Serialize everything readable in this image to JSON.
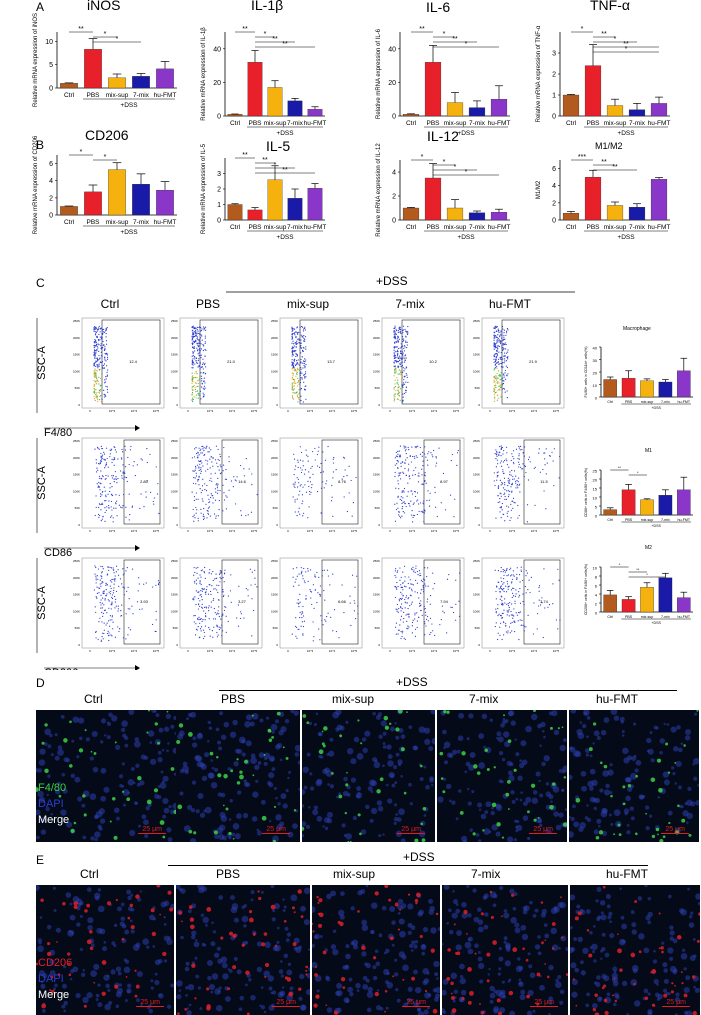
{
  "colors": {
    "ctrl": "#b35a1f",
    "pbs": "#e8202a",
    "mix": "#f5b20e",
    "seven": "#1a1aa8",
    "hu": "#8a36c9"
  },
  "panel_letters": [
    "A",
    "B",
    "C",
    "D",
    "E"
  ],
  "dss_label": "+DSS",
  "groups": [
    "Ctrl",
    "PBS",
    "mix-sup",
    "7-mix",
    "hu-FMT"
  ],
  "chart_data": [
    {
      "type": "bar",
      "id": "inos",
      "title": "iNOS",
      "ylabel": "Relative mRNA expression of iNOS",
      "ylim": [
        0,
        12
      ],
      "ticks": [
        "0",
        "5",
        "10"
      ],
      "tick_values": [
        0,
        5,
        10
      ],
      "categories": [
        "Ctrl",
        "PBS",
        "mix-sup",
        "7-mix",
        "hu-FMT"
      ],
      "values": [
        1,
        8.3,
        2.2,
        2.5,
        4.1
      ],
      "errors": [
        0.1,
        2.3,
        0.8,
        0.6,
        1.6
      ],
      "sig": [
        "**",
        "*",
        "*"
      ]
    },
    {
      "type": "bar",
      "id": "il1b",
      "title": "IL-1β",
      "ylabel": "Relative mRNA expression of IL-1β",
      "ylim": [
        0,
        50
      ],
      "ticks": [
        "0",
        "20",
        "40"
      ],
      "tick_values": [
        0,
        20,
        40
      ],
      "categories": [
        "Ctrl",
        "PBS",
        "mix-sup",
        "7-mix",
        "hu-FMT"
      ],
      "values": [
        1,
        32,
        17,
        9,
        4
      ],
      "errors": [
        0.2,
        7,
        4,
        1.5,
        1.5
      ],
      "sig": [
        "**",
        "*",
        "**",
        "**"
      ]
    },
    {
      "type": "bar",
      "id": "il6",
      "title": "IL-6",
      "ylabel": "Relative mRNA expression of IL-6",
      "ylim": [
        0,
        50
      ],
      "ticks": [
        "0",
        "20",
        "40"
      ],
      "tick_values": [
        0,
        20,
        40
      ],
      "categories": [
        "Ctrl",
        "PBS",
        "mix-sup",
        "7-mix",
        "hu-FMT"
      ],
      "values": [
        1,
        32,
        8,
        5,
        10
      ],
      "errors": [
        0.3,
        10,
        6,
        4,
        8
      ],
      "sig": [
        "**",
        "*",
        "**",
        "*"
      ]
    },
    {
      "type": "bar",
      "id": "tnfa",
      "title": "TNF-α",
      "ylabel": "Relative mRNA expression of TNF-α",
      "ylim": [
        0,
        4
      ],
      "ticks": [
        "0",
        "1",
        "2",
        "3"
      ],
      "tick_values": [
        0,
        1,
        2,
        3
      ],
      "categories": [
        "Ctrl",
        "PBS",
        "mix-sup",
        "7-mix",
        "hu-FMT"
      ],
      "values": [
        1,
        2.4,
        0.5,
        0.3,
        0.6
      ],
      "errors": [
        0.03,
        1,
        0.3,
        0.3,
        0.3
      ],
      "sig": [
        "*",
        "**",
        "*",
        "**",
        "*"
      ]
    },
    {
      "type": "bar",
      "id": "cd206",
      "title": "CD206",
      "ylabel": "Relative mRNA expression of CD206",
      "ylim": [
        0,
        7
      ],
      "ticks": [
        "0",
        "2",
        "4",
        "6"
      ],
      "tick_values": [
        0,
        2,
        4,
        6
      ],
      "categories": [
        "Ctrl",
        "PBS",
        "mix-sup",
        "7-mix",
        "hu-FMT"
      ],
      "values": [
        1,
        2.7,
        5.3,
        3.6,
        2.9
      ],
      "errors": [
        0.05,
        0.8,
        0.8,
        1.2,
        1.0
      ],
      "sig": [
        "*",
        "*"
      ]
    },
    {
      "type": "bar",
      "id": "il5",
      "title": "IL-5",
      "ylabel": "Relative mRNA expression of IL-5",
      "ylim": [
        0,
        4
      ],
      "ticks": [
        "0",
        "1",
        "2",
        "3"
      ],
      "tick_values": [
        0,
        1,
        2,
        3
      ],
      "categories": [
        "Ctrl",
        "PBS",
        "mix-sup",
        "7-mix",
        "hu-FMT"
      ],
      "values": [
        1,
        0.65,
        2.6,
        1.4,
        2.05
      ],
      "errors": [
        0.05,
        0.15,
        0.9,
        0.6,
        0.3
      ],
      "sig": [
        "**",
        "**",
        "*",
        "**"
      ]
    },
    {
      "type": "bar",
      "id": "il12",
      "title": "IL-12",
      "ylabel": "Relative mRNA expression of IL-12",
      "ylim": [
        0,
        5
      ],
      "ticks": [
        "0",
        "2",
        "4"
      ],
      "tick_values": [
        0,
        2,
        4
      ],
      "categories": [
        "Ctrl",
        "PBS",
        "mix-sup",
        "7-mix",
        "hu-FMT"
      ],
      "values": [
        1,
        3.5,
        1.0,
        0.6,
        0.65
      ],
      "errors": [
        0.05,
        1.2,
        0.7,
        0.15,
        0.25
      ],
      "sig": [
        "*",
        "*",
        "*",
        "*"
      ]
    },
    {
      "type": "bar",
      "id": "m1m2",
      "title": "M1/M2",
      "ylabel": "M1/M2",
      "ylim": [
        0,
        7
      ],
      "ticks": [
        "0",
        "2",
        "4",
        "6"
      ],
      "tick_values": [
        0,
        2,
        4,
        6
      ],
      "categories": [
        "Ctrl",
        "PBS",
        "mix-sup",
        "7-mix",
        "hu-FMT"
      ],
      "values": [
        0.8,
        5,
        1.7,
        1.5,
        4.75
      ],
      "errors": [
        0.2,
        0.8,
        0.4,
        0.4,
        0.2
      ],
      "sig": [
        "***",
        "**",
        "**"
      ]
    },
    {
      "type": "bar",
      "id": "macro",
      "title": "Macrophage",
      "ylabel": "F4/80+ cells in CD11b+ cells(%)",
      "ylim": [
        0,
        40
      ],
      "ticks": [
        "0",
        "10",
        "20",
        "30",
        "40"
      ],
      "tick_values": [
        0,
        10,
        20,
        30,
        40
      ],
      "categories": [
        "Ctrl",
        "PBS",
        "mix-sup",
        "7-mix",
        "hu-FMT"
      ],
      "values": [
        14,
        15,
        13,
        12,
        21
      ],
      "errors": [
        2,
        6,
        1.5,
        2,
        10
      ],
      "sig": []
    },
    {
      "type": "bar",
      "id": "m1",
      "title": "M1",
      "ylabel": "CD86+ cells in F4/80+ cells(%)",
      "ylim": [
        0,
        25
      ],
      "ticks": [
        "0",
        "5",
        "10",
        "15",
        "20",
        "25"
      ],
      "tick_values": [
        0,
        5,
        10,
        15,
        20,
        25
      ],
      "categories": [
        "Ctrl",
        "PBS",
        "mix-sup",
        "7-mix",
        "hu-FMT"
      ],
      "values": [
        3,
        14,
        8.5,
        11,
        14
      ],
      "errors": [
        1,
        3,
        0.5,
        3,
        7
      ],
      "sig": [
        "**",
        "*"
      ]
    },
    {
      "type": "bar",
      "id": "m2",
      "title": "M2",
      "ylabel": "CD206+ cells in F4/80+ cells(%)",
      "ylim": [
        0,
        10
      ],
      "ticks": [
        "0",
        "2",
        "4",
        "6",
        "8",
        "10"
      ],
      "tick_values": [
        0,
        2,
        4,
        6,
        8,
        10
      ],
      "categories": [
        "Ctrl",
        "PBS",
        "mix-sup",
        "7-mix",
        "hu-FMT"
      ],
      "values": [
        3.8,
        2.8,
        5.5,
        7.6,
        3.2
      ],
      "errors": [
        1,
        0.6,
        1,
        1,
        1.2
      ],
      "sig": [
        "*",
        "**",
        "*"
      ]
    }
  ],
  "flow": {
    "row_markers": [
      "F4/80",
      "CD86",
      "CD206"
    ],
    "y_axis_label": "SSC-A",
    "percentages": [
      [
        "12.4",
        "21.0",
        "13.7",
        "10.2",
        "21.9"
      ],
      [
        "2.80",
        "14.6",
        "8.76",
        "8.97",
        "11.5"
      ],
      [
        "3.93",
        "3.27",
        "6.66",
        "7.94",
        "3.74"
      ]
    ],
    "y_ticks": [
      "250K",
      "200K",
      "150K",
      "100K",
      "50K",
      "0"
    ],
    "x_ticks": [
      "0",
      "10^3",
      "10^4",
      "10^5"
    ]
  },
  "if_d": {
    "labels": [
      "F4/80",
      "DAPI",
      "Merge"
    ],
    "scale": "25 μm"
  },
  "if_e": {
    "labels": [
      "CD206",
      "DAPI",
      "Merge"
    ],
    "scale": "25 μm"
  }
}
